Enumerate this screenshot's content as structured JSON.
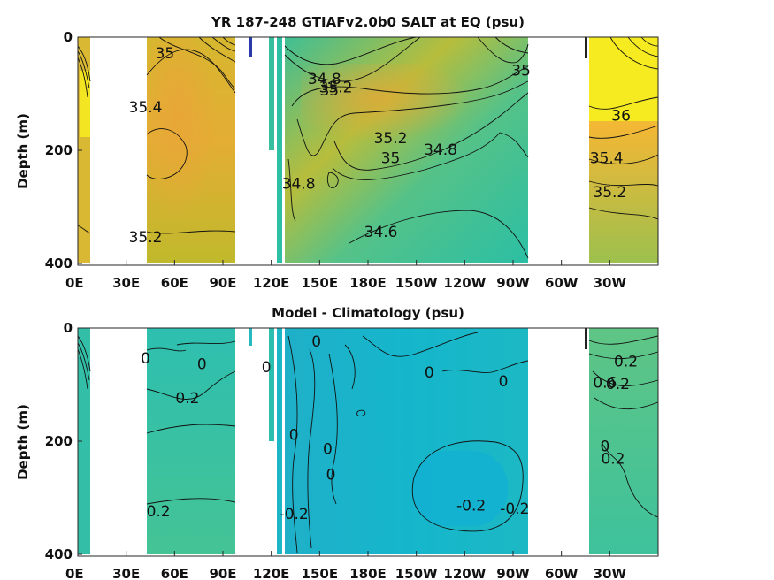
{
  "chart_data": [
    {
      "type": "heatmap",
      "title": "YR 187-248 GTIAFv2.0b0 SALT at EQ (psu)",
      "ylabel": "Depth (m)",
      "xticks": [
        "0E",
        "30E",
        "60E",
        "90E",
        "120E",
        "150E",
        "180E",
        "150W",
        "120W",
        "90W",
        "60W",
        "30W"
      ],
      "yticks": [
        "0",
        "200",
        "400"
      ],
      "ylim": [
        0,
        400
      ],
      "y_direction": "depth increases downward",
      "contour_labels": [
        {
          "text": "35",
          "lon": 54,
          "depth": 30
        },
        {
          "text": "35.4",
          "lon": 42,
          "depth": 125
        },
        {
          "text": "35.2",
          "lon": 42,
          "depth": 355
        },
        {
          "text": "34.8",
          "lon": 153,
          "depth": 75
        },
        {
          "text": "35",
          "lon": 156,
          "depth": 95
        },
        {
          "text": "35.2",
          "lon": 160,
          "depth": 90
        },
        {
          "text": "35.2",
          "lon": 194,
          "depth": 180
        },
        {
          "text": "35",
          "lon": 194,
          "depth": 215
        },
        {
          "text": "34.8",
          "lon": 225,
          "depth": 200
        },
        {
          "text": "35",
          "lon": 275,
          "depth": 60
        },
        {
          "text": "34.8",
          "lon": 137,
          "depth": 260
        },
        {
          "text": "34.6",
          "lon": 188,
          "depth": 345
        },
        {
          "text": "36",
          "lon": 337,
          "depth": 140
        },
        {
          "text": "35.4",
          "lon": 328,
          "depth": 215
        },
        {
          "text": "35.2",
          "lon": 330,
          "depth": 275
        }
      ]
    },
    {
      "type": "heatmap",
      "title": "Model - Climatology (psu)",
      "ylabel": "Depth (m)",
      "xticks": [
        "0E",
        "30E",
        "60E",
        "90E",
        "120E",
        "150E",
        "180E",
        "150W",
        "120W",
        "90W",
        "60W",
        "30W"
      ],
      "yticks": [
        "0",
        "200",
        "400"
      ],
      "ylim": [
        0,
        400
      ],
      "y_direction": "depth increases downward",
      "contour_labels": [
        {
          "text": "0",
          "lon": 42,
          "depth": 55
        },
        {
          "text": "0",
          "lon": 77,
          "depth": 65
        },
        {
          "text": "0.2",
          "lon": 68,
          "depth": 125
        },
        {
          "text": "0.2",
          "lon": 50,
          "depth": 325
        },
        {
          "text": "0",
          "lon": 117,
          "depth": 70
        },
        {
          "text": "0",
          "lon": 148,
          "depth": 25
        },
        {
          "text": "0",
          "lon": 218,
          "depth": 80
        },
        {
          "text": "0",
          "lon": 264,
          "depth": 95
        },
        {
          "text": "0",
          "lon": 134,
          "depth": 190
        },
        {
          "text": "0",
          "lon": 155,
          "depth": 215
        },
        {
          "text": "0",
          "lon": 157,
          "depth": 260
        },
        {
          "text": "-0.2",
          "lon": 134,
          "depth": 330
        },
        {
          "text": "-0.2",
          "lon": 244,
          "depth": 315
        },
        {
          "text": "-0.2",
          "lon": 271,
          "depth": 320
        },
        {
          "text": "0.2",
          "lon": 340,
          "depth": 60
        },
        {
          "text": "0.6",
          "lon": 327,
          "depth": 98
        },
        {
          "text": "0",
          "lon": 327,
          "depth": 210
        },
        {
          "text": "0.2",
          "lon": 332,
          "depth": 232
        },
        {
          "text": "0.2",
          "lon": 335,
          "depth": 100
        }
      ]
    }
  ]
}
